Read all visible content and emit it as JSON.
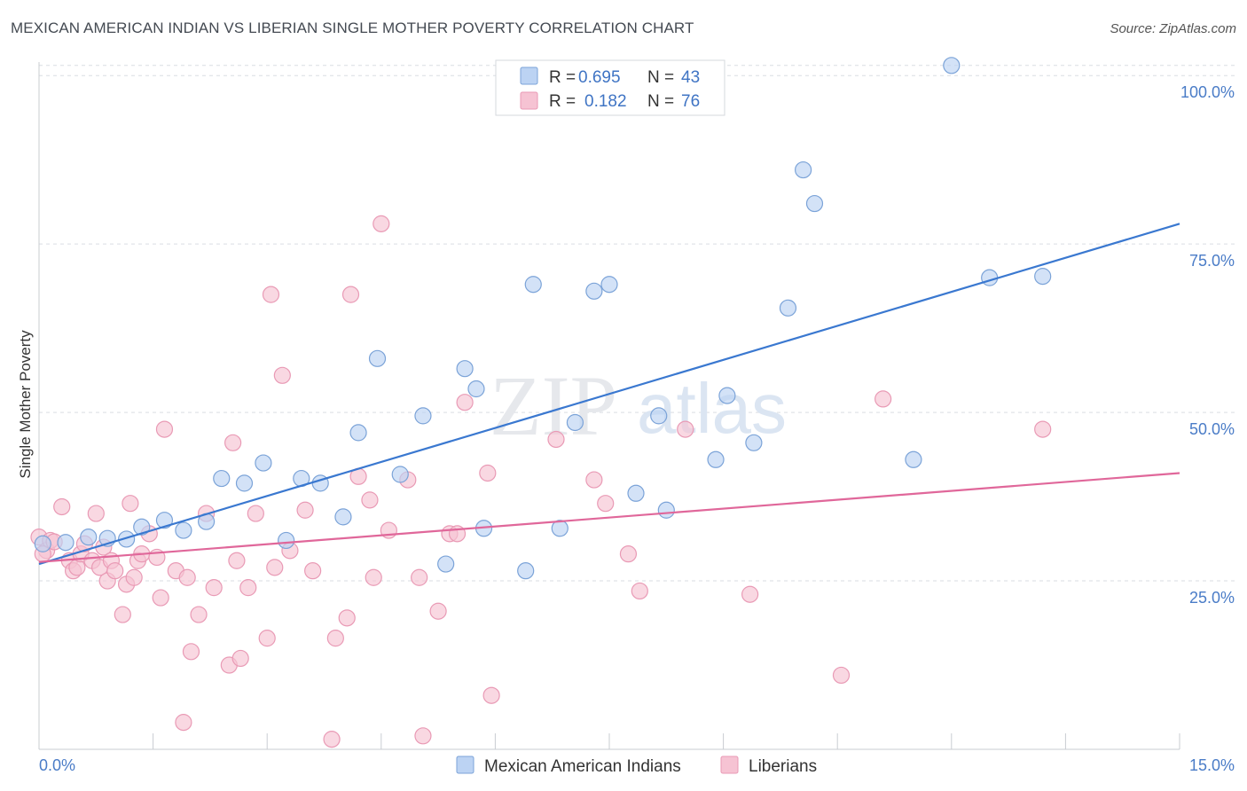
{
  "title": "MEXICAN AMERICAN INDIAN VS LIBERIAN SINGLE MOTHER POVERTY CORRELATION CHART",
  "source": "Source: ZipAtlas.com",
  "watermark": {
    "zip": "ZIP",
    "atlas": "atlas"
  },
  "colors": {
    "blue_fill": "#bcd3f3",
    "blue_stroke": "#7ba3d8",
    "blue_line": "#3a78d0",
    "pink_fill": "#f6c3d3",
    "pink_stroke": "#e99ab5",
    "pink_line": "#e0679a",
    "grid": "#d9dde3",
    "tick_text": "#4a7cc7"
  },
  "legend": {
    "rows": [
      {
        "r_label": "R =",
        "r_value": "0.695",
        "n_label": "N =",
        "n_value": "43"
      },
      {
        "r_label": "R =",
        "r_value": "0.182",
        "n_label": "N =",
        "n_value": "76"
      }
    ]
  },
  "bottom_legend": [
    "Mexican American Indians",
    "Liberians"
  ],
  "chart_data": {
    "type": "scatter",
    "title": "MEXICAN AMERICAN INDIAN VS LIBERIAN SINGLE MOTHER POVERTY CORRELATION CHART",
    "xlabel": "",
    "ylabel": "Single Mother Poverty",
    "xlim": [
      0,
      15
    ],
    "ylim": [
      0,
      102
    ],
    "x_tick_labels": [
      "0.0%",
      "15.0%"
    ],
    "y_tick_labels": [
      "100.0%",
      "75.0%",
      "50.0%",
      "25.0%"
    ],
    "y_ticks": [
      100,
      75,
      50,
      25
    ],
    "grid": true,
    "legend_position": "top-center",
    "series": [
      {
        "name": "Mexican American Indians",
        "r": 0.695,
        "n": 43,
        "trend": {
          "x": [
            0,
            15
          ],
          "y": [
            27.5,
            78.0
          ]
        },
        "points": [
          [
            0.05,
            30.5
          ],
          [
            0.35,
            30.7
          ],
          [
            0.65,
            31.5
          ],
          [
            0.9,
            31.3
          ],
          [
            1.15,
            31.2
          ],
          [
            1.35,
            33.0
          ],
          [
            1.65,
            34.0
          ],
          [
            1.9,
            32.5
          ],
          [
            2.2,
            33.8
          ],
          [
            2.4,
            40.2
          ],
          [
            2.7,
            39.5
          ],
          [
            2.95,
            42.5
          ],
          [
            3.25,
            31.0
          ],
          [
            3.45,
            40.2
          ],
          [
            3.7,
            39.5
          ],
          [
            4.0,
            34.5
          ],
          [
            4.2,
            47.0
          ],
          [
            4.45,
            58.0
          ],
          [
            4.75,
            40.8
          ],
          [
            5.05,
            49.5
          ],
          [
            5.35,
            27.5
          ],
          [
            5.6,
            56.5
          ],
          [
            5.75,
            53.5
          ],
          [
            5.85,
            32.8
          ],
          [
            6.4,
            26.5
          ],
          [
            6.5,
            69.0
          ],
          [
            6.85,
            32.8
          ],
          [
            7.05,
            48.5
          ],
          [
            7.3,
            68.0
          ],
          [
            7.5,
            69.0
          ],
          [
            7.85,
            38.0
          ],
          [
            8.15,
            49.5
          ],
          [
            8.25,
            35.5
          ],
          [
            8.9,
            43.0
          ],
          [
            9.05,
            52.5
          ],
          [
            9.4,
            45.5
          ],
          [
            9.85,
            65.5
          ],
          [
            10.05,
            86.0
          ],
          [
            10.2,
            81.0
          ],
          [
            11.5,
            43.0
          ],
          [
            12.0,
            101.5
          ],
          [
            12.5,
            70.0
          ],
          [
            13.2,
            70.2
          ]
        ]
      },
      {
        "name": "Liberians",
        "r": 0.182,
        "n": 76,
        "trend": {
          "x": [
            0,
            15
          ],
          "y": [
            27.8,
            41.0
          ]
        },
        "points": [
          [
            0.0,
            31.5
          ],
          [
            0.1,
            29.5
          ],
          [
            0.15,
            31.0
          ],
          [
            0.3,
            36.0
          ],
          [
            0.4,
            28.0
          ],
          [
            0.45,
            26.5
          ],
          [
            0.5,
            27.0
          ],
          [
            0.55,
            29.0
          ],
          [
            0.6,
            30.5
          ],
          [
            0.7,
            28.0
          ],
          [
            0.75,
            35.0
          ],
          [
            0.8,
            27.0
          ],
          [
            0.85,
            30.0
          ],
          [
            0.9,
            25.0
          ],
          [
            0.95,
            28.0
          ],
          [
            1.0,
            26.5
          ],
          [
            1.1,
            20.0
          ],
          [
            1.15,
            24.5
          ],
          [
            1.2,
            36.5
          ],
          [
            1.25,
            25.5
          ],
          [
            1.3,
            28.0
          ],
          [
            1.35,
            29.0
          ],
          [
            1.45,
            32.0
          ],
          [
            1.55,
            28.5
          ],
          [
            1.6,
            22.5
          ],
          [
            1.65,
            47.5
          ],
          [
            1.8,
            26.5
          ],
          [
            1.9,
            4.0
          ],
          [
            1.95,
            25.5
          ],
          [
            2.0,
            14.5
          ],
          [
            2.1,
            20.0
          ],
          [
            2.2,
            35.0
          ],
          [
            2.3,
            24.0
          ],
          [
            2.5,
            12.5
          ],
          [
            2.55,
            45.5
          ],
          [
            2.6,
            28.0
          ],
          [
            2.65,
            13.5
          ],
          [
            2.75,
            24.0
          ],
          [
            2.85,
            35.0
          ],
          [
            3.0,
            16.5
          ],
          [
            3.05,
            67.5
          ],
          [
            3.1,
            27.0
          ],
          [
            3.2,
            55.5
          ],
          [
            3.3,
            29.5
          ],
          [
            3.5,
            35.5
          ],
          [
            3.6,
            26.5
          ],
          [
            3.85,
            1.5
          ],
          [
            3.9,
            16.5
          ],
          [
            4.05,
            19.5
          ],
          [
            4.1,
            67.5
          ],
          [
            4.2,
            40.5
          ],
          [
            4.35,
            37.0
          ],
          [
            4.4,
            25.5
          ],
          [
            4.5,
            78.0
          ],
          [
            4.6,
            32.5
          ],
          [
            4.85,
            40.0
          ],
          [
            5.0,
            25.5
          ],
          [
            5.05,
            2.0
          ],
          [
            5.25,
            20.5
          ],
          [
            5.4,
            32.0
          ],
          [
            5.5,
            32.0
          ],
          [
            5.6,
            51.5
          ],
          [
            5.9,
            41.0
          ],
          [
            5.95,
            8.0
          ],
          [
            6.8,
            46.0
          ],
          [
            7.3,
            40.0
          ],
          [
            7.45,
            36.5
          ],
          [
            7.75,
            29.0
          ],
          [
            7.9,
            23.5
          ],
          [
            8.5,
            47.5
          ],
          [
            9.35,
            23.0
          ],
          [
            10.55,
            11.0
          ],
          [
            11.1,
            52.0
          ],
          [
            13.2,
            47.5
          ],
          [
            0.2,
            30.8
          ],
          [
            0.05,
            29.0
          ]
        ]
      }
    ]
  }
}
